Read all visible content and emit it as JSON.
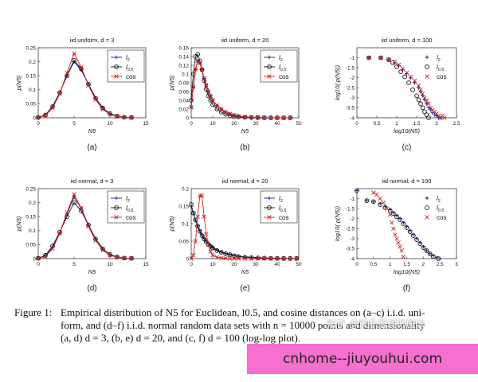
{
  "colors": {
    "l2": "#1a1a8a",
    "l05": "#111111",
    "cos": "#cc2222",
    "banner": "#f76fcf"
  },
  "panels": [
    {
      "title": "iid uniform,  d = 3",
      "sublabel": "(a)"
    },
    {
      "title": "iid uniform,  d = 20",
      "sublabel": "(b)"
    },
    {
      "title": "iid uniform,  d = 100",
      "sublabel": "(c)"
    },
    {
      "title": "iid normal,  d = 3",
      "sublabel": "(d)"
    },
    {
      "title": "iid normal,  d = 20",
      "sublabel": "(e)"
    },
    {
      "title": "iid normal,  d = 100",
      "sublabel": "(f)"
    }
  ],
  "caption": {
    "label": "Figure 1:",
    "line1": "Empirical distribution of N5 for Euclidean, l0.5, and cosine distances on (a–c) i.i.d. uni-",
    "line2": "form, and (d–f) i.i.d. normal random data sets with n = 10000 points and dimensionality",
    "line3": "(a, d) d = 3, (b, e) d = 20, and (c, f) d = 100 (log-log plot)."
  },
  "watermark": "知乎 @饺子游戏的魔法",
  "banner_text": "cnhome--jiuyouhui.com",
  "chart_data": [
    {
      "type": "line",
      "title": "iid uniform,  d = 3",
      "xlabel": "N5",
      "ylabel": "p(N5)",
      "xlim": [
        0,
        15
      ],
      "ylim": [
        0,
        0.25
      ],
      "xticks": [
        "0",
        "5",
        "10",
        "15"
      ],
      "yticks": [
        "0",
        "0.05",
        "0.1",
        "0.15",
        "0.2",
        "0.25"
      ],
      "x": [
        0,
        1,
        2,
        3,
        4,
        5,
        6,
        7,
        8,
        9,
        10,
        11,
        12,
        13
      ],
      "series": [
        {
          "name": "l2",
          "marker": "plus",
          "values": [
            0.001,
            0.01,
            0.04,
            0.09,
            0.15,
            0.2,
            0.17,
            0.12,
            0.07,
            0.035,
            0.015,
            0.006,
            0.002,
            0.001
          ]
        },
        {
          "name": "l0.5",
          "marker": "circle",
          "values": [
            0.001,
            0.01,
            0.04,
            0.09,
            0.15,
            0.205,
            0.175,
            0.12,
            0.07,
            0.035,
            0.015,
            0.006,
            0.002,
            0.001
          ]
        },
        {
          "name": "cos",
          "marker": "x",
          "values": [
            0.001,
            0.008,
            0.035,
            0.085,
            0.16,
            0.23,
            0.18,
            0.115,
            0.065,
            0.03,
            0.012,
            0.005,
            0.002,
            0.001
          ]
        }
      ],
      "legend": "top-right"
    },
    {
      "type": "line",
      "title": "iid uniform,  d = 20",
      "xlabel": "N5",
      "ylabel": "p(N5)",
      "xlim": [
        0,
        50
      ],
      "ylim": [
        0,
        0.16
      ],
      "xticks": [
        "0",
        "10",
        "20",
        "30",
        "40",
        "50"
      ],
      "yticks": [
        "0",
        "0.02",
        "0.04",
        "0.06",
        "0.08",
        "0.1",
        "0.12",
        "0.14",
        "0.16"
      ],
      "x": [
        0,
        1,
        2,
        3,
        4,
        5,
        6,
        7,
        8,
        9,
        10,
        12,
        14,
        16,
        18,
        20,
        22,
        25,
        28,
        31,
        34,
        37,
        40,
        43,
        46
      ],
      "series": [
        {
          "name": "l2",
          "marker": "plus",
          "values": [
            0.025,
            0.07,
            0.11,
            0.13,
            0.125,
            0.11,
            0.09,
            0.075,
            0.06,
            0.05,
            0.04,
            0.028,
            0.02,
            0.013,
            0.009,
            0.006,
            0.004,
            0.002,
            0.001,
            0.0007,
            0.0004,
            0.0002,
            0.0001,
            0.0001,
            0
          ]
        },
        {
          "name": "l0.5",
          "marker": "circle",
          "values": [
            0.04,
            0.1,
            0.14,
            0.145,
            0.13,
            0.11,
            0.085,
            0.065,
            0.05,
            0.04,
            0.03,
            0.02,
            0.013,
            0.008,
            0.005,
            0.003,
            0.002,
            0.001,
            0.0005,
            0.0002,
            0.0001,
            0,
            0,
            0,
            0
          ]
        },
        {
          "name": "cos",
          "marker": "x",
          "values": [
            0.025,
            0.07,
            0.11,
            0.13,
            0.125,
            0.11,
            0.09,
            0.075,
            0.06,
            0.05,
            0.04,
            0.028,
            0.02,
            0.013,
            0.009,
            0.006,
            0.004,
            0.002,
            0.001,
            0.0007,
            0.0004,
            0.0002,
            0.0001,
            0.0001,
            0
          ]
        }
      ],
      "legend": "top-right"
    },
    {
      "type": "scatter",
      "title": "iid uniform,  d = 100",
      "xlabel": "log10(N5)",
      "ylabel": "log10( p(N5))",
      "xlim": [
        0,
        2.5
      ],
      "ylim": [
        -4,
        -0.5
      ],
      "xticks": [
        "0",
        "0.5",
        "1",
        "1.5",
        "2",
        "2.5"
      ],
      "yticks": [
        "-1",
        "-1.5",
        "-2",
        "-2.5",
        "-3",
        "-3.5",
        "-4"
      ],
      "series": [
        {
          "name": "l2",
          "marker": "plus",
          "x": [
            0.3,
            0.6,
            0.8,
            0.95,
            1.05,
            1.15,
            1.25,
            1.35,
            1.45,
            1.55,
            1.6,
            1.65,
            1.7,
            1.75,
            1.8,
            1.85,
            1.9,
            1.95,
            2.0,
            2.05,
            2.1
          ],
          "values": [
            -1.0,
            -1.02,
            -1.1,
            -1.25,
            -1.4,
            -1.6,
            -1.8,
            -2.0,
            -2.25,
            -2.5,
            -2.7,
            -2.9,
            -3.1,
            -3.3,
            -3.5,
            -3.6,
            -3.75,
            -3.85,
            -3.9,
            -4.0,
            -4.0
          ]
        },
        {
          "name": "l0.5",
          "marker": "circle",
          "x": [
            0.3,
            0.6,
            0.8,
            0.9,
            1.0,
            1.1,
            1.2,
            1.3,
            1.4,
            1.5,
            1.55,
            1.6,
            1.65,
            1.7,
            1.75,
            1.8
          ],
          "values": [
            -1.0,
            -1.0,
            -1.1,
            -1.25,
            -1.45,
            -1.7,
            -1.95,
            -2.25,
            -2.6,
            -2.9,
            -3.1,
            -3.3,
            -3.5,
            -3.7,
            -3.85,
            -4.0
          ]
        },
        {
          "name": "cos",
          "marker": "x",
          "x": [
            0.3,
            0.6,
            0.8,
            0.95,
            1.05,
            1.15,
            1.25,
            1.35,
            1.45,
            1.55,
            1.6,
            1.65,
            1.7,
            1.75,
            1.8,
            1.85,
            1.9,
            1.95,
            2.0,
            2.05,
            2.1,
            2.15,
            2.2
          ],
          "values": [
            -1.0,
            -1.0,
            -1.1,
            -1.2,
            -1.35,
            -1.55,
            -1.75,
            -1.95,
            -2.15,
            -2.4,
            -2.6,
            -2.8,
            -3.0,
            -3.15,
            -3.3,
            -3.5,
            -3.6,
            -3.7,
            -3.8,
            -3.9,
            -4.0,
            -3.9,
            -4.0
          ]
        }
      ],
      "legend": "top-right"
    },
    {
      "type": "line",
      "title": "iid normal,  d = 3",
      "xlabel": "N5",
      "ylabel": "p(N5)",
      "xlim": [
        0,
        15
      ],
      "ylim": [
        0,
        0.25
      ],
      "xticks": [
        "0",
        "5",
        "10",
        "15"
      ],
      "yticks": [
        "0",
        "0.05",
        "0.1",
        "0.15",
        "0.2",
        "0.25"
      ],
      "x": [
        0,
        1,
        2,
        3,
        4,
        5,
        6,
        7,
        8,
        9,
        10,
        11,
        12,
        13
      ],
      "series": [
        {
          "name": "l2",
          "marker": "plus",
          "values": [
            0.001,
            0.01,
            0.04,
            0.09,
            0.16,
            0.22,
            0.18,
            0.12,
            0.07,
            0.035,
            0.015,
            0.006,
            0.002,
            0.001
          ]
        },
        {
          "name": "l0.5",
          "marker": "circle",
          "values": [
            0.001,
            0.012,
            0.045,
            0.095,
            0.15,
            0.2,
            0.17,
            0.12,
            0.07,
            0.035,
            0.015,
            0.006,
            0.002,
            0.001
          ]
        },
        {
          "name": "cos",
          "marker": "x",
          "values": [
            0.001,
            0.008,
            0.035,
            0.09,
            0.165,
            0.23,
            0.18,
            0.115,
            0.065,
            0.03,
            0.012,
            0.005,
            0.002,
            0.001
          ]
        }
      ],
      "legend": "top-right"
    },
    {
      "type": "line",
      "title": "iid normal,  d = 20",
      "xlabel": "N5",
      "ylabel": "p(N5)",
      "xlim": [
        0,
        50
      ],
      "ylim": [
        0,
        0.2
      ],
      "xticks": [
        "0",
        "10",
        "20",
        "30",
        "40",
        "50"
      ],
      "yticks": [
        "0",
        "0.05",
        "0.1",
        "0.15",
        "0.2"
      ],
      "x": [
        0,
        1,
        2,
        3,
        4,
        5,
        6,
        7,
        8,
        9,
        10,
        12,
        14,
        16,
        18,
        20,
        22,
        25,
        28,
        31,
        34,
        37,
        40,
        43,
        46,
        49
      ],
      "series": [
        {
          "name": "l2",
          "marker": "plus",
          "values": [
            0.15,
            0.13,
            0.11,
            0.095,
            0.08,
            0.068,
            0.058,
            0.05,
            0.043,
            0.037,
            0.032,
            0.025,
            0.019,
            0.015,
            0.012,
            0.009,
            0.007,
            0.005,
            0.004,
            0.003,
            0.002,
            0.0015,
            0.001,
            0.001,
            0.0005,
            0.0005
          ]
        },
        {
          "name": "l0.5",
          "marker": "circle",
          "values": [
            0.155,
            0.13,
            0.11,
            0.093,
            0.078,
            0.066,
            0.056,
            0.048,
            0.041,
            0.035,
            0.03,
            0.023,
            0.018,
            0.014,
            0.011,
            0.008,
            0.006,
            0.004,
            0.003,
            0.002,
            0.0015,
            0.001,
            0.001,
            0.0005,
            0.0005,
            0.0005
          ]
        },
        {
          "name": "cos",
          "marker": "x",
          "values": [
            0.0,
            0.01,
            0.05,
            0.12,
            0.18,
            0.18,
            0.12,
            0.07,
            0.04,
            0.02,
            0.01,
            0.004,
            0.002,
            0.001,
            0,
            0,
            0,
            0,
            0,
            0,
            0,
            0,
            0,
            0,
            0,
            0
          ]
        }
      ],
      "legend": "top-right"
    },
    {
      "type": "scatter",
      "title": "iid normal,  d = 100",
      "xlabel": "log10(N5)",
      "ylabel": "log10( p(N5))",
      "xlim": [
        0,
        3
      ],
      "ylim": [
        -4,
        -0.5
      ],
      "xticks": [
        "0",
        "0.5",
        "1",
        "1.5",
        "2",
        "2.5",
        "3"
      ],
      "yticks": [
        "-1",
        "-1.5",
        "-2",
        "-2.5",
        "-3",
        "-3.5",
        "-4"
      ],
      "series": [
        {
          "name": "l2",
          "marker": "plus",
          "x": [
            0,
            0.3,
            0.5,
            0.7,
            0.85,
            1.0,
            1.1,
            1.2,
            1.3,
            1.4,
            1.5,
            1.6,
            1.7,
            1.8,
            1.9,
            2.0,
            2.1,
            2.2,
            2.3,
            2.4,
            2.5
          ],
          "values": [
            -0.6,
            -1.1,
            -1.15,
            -1.25,
            -1.4,
            -1.55,
            -1.7,
            -1.85,
            -2.0,
            -2.2,
            -2.4,
            -2.6,
            -2.8,
            -3.0,
            -3.2,
            -3.4,
            -3.6,
            -3.75,
            -3.85,
            -3.95,
            -4.0
          ]
        },
        {
          "name": "l0.5",
          "marker": "circle",
          "x": [
            0,
            0.3,
            0.5,
            0.7,
            0.85,
            1.0,
            1.1,
            1.2,
            1.3,
            1.4,
            1.5,
            1.6,
            1.7,
            1.8,
            1.9,
            2.0,
            2.1,
            2.2,
            2.3,
            2.45
          ],
          "values": [
            -0.6,
            -1.1,
            -1.15,
            -1.3,
            -1.45,
            -1.6,
            -1.75,
            -1.9,
            -2.05,
            -2.25,
            -2.45,
            -2.65,
            -2.85,
            -3.05,
            -3.25,
            -3.45,
            -3.6,
            -3.75,
            -3.9,
            -4.0
          ]
        },
        {
          "name": "cos",
          "marker": "x",
          "x": [
            0.5,
            0.6,
            0.7,
            0.8,
            0.9,
            1.0,
            1.05,
            1.1,
            1.15,
            1.2,
            1.25,
            1.3,
            1.35,
            1.4
          ],
          "values": [
            -0.7,
            -0.8,
            -1.0,
            -1.2,
            -1.5,
            -1.8,
            -2.2,
            -2.5,
            -2.8,
            -3.0,
            -3.2,
            -3.4,
            -3.6,
            -3.9
          ]
        }
      ],
      "legend": "top-right"
    }
  ]
}
